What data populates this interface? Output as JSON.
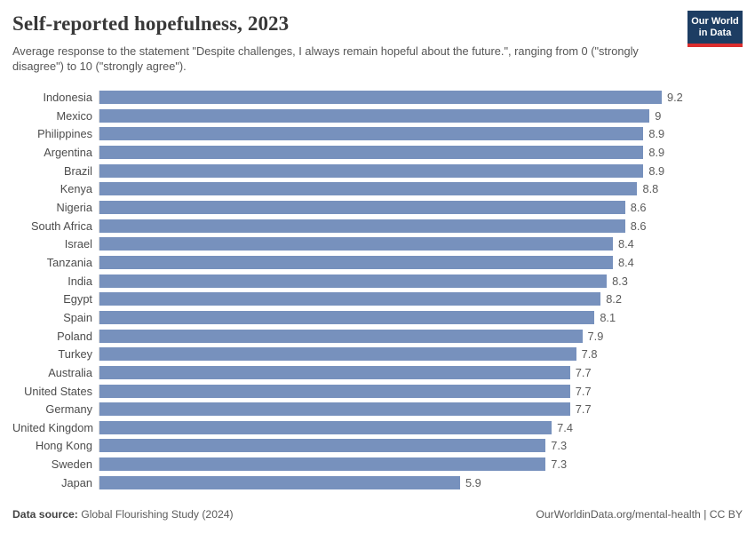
{
  "header": {
    "title": "Self-reported hopefulness, 2023",
    "subtitle": "Average response to the statement \"Despite challenges, I always remain hopeful about the future.\", ranging from 0 (\"strongly disagree\") to 10 (\"strongly agree\").",
    "logo": {
      "line1": "Our World",
      "line2": "in Data"
    }
  },
  "chart_data": {
    "type": "bar",
    "orientation": "horizontal",
    "title": "Self-reported hopefulness, 2023",
    "xlabel": "",
    "ylabel": "",
    "xlim": [
      0,
      9.2
    ],
    "grid": false,
    "legend": false,
    "bar_color": "#7791bd",
    "categories": [
      "Indonesia",
      "Mexico",
      "Philippines",
      "Argentina",
      "Brazil",
      "Kenya",
      "Nigeria",
      "South Africa",
      "Israel",
      "Tanzania",
      "India",
      "Egypt",
      "Spain",
      "Poland",
      "Turkey",
      "Australia",
      "United States",
      "Germany",
      "United Kingdom",
      "Hong Kong",
      "Sweden",
      "Japan"
    ],
    "values": [
      9.2,
      9,
      8.9,
      8.9,
      8.9,
      8.8,
      8.6,
      8.6,
      8.4,
      8.4,
      8.3,
      8.2,
      8.1,
      7.9,
      7.8,
      7.7,
      7.7,
      7.7,
      7.4,
      7.3,
      7.3,
      5.9
    ],
    "value_labels": [
      "9.2",
      "9",
      "8.9",
      "8.9",
      "8.9",
      "8.8",
      "8.6",
      "8.6",
      "8.4",
      "8.4",
      "8.3",
      "8.2",
      "8.1",
      "7.9",
      "7.8",
      "7.7",
      "7.7",
      "7.7",
      "7.4",
      "7.3",
      "7.3",
      "5.9"
    ]
  },
  "footer": {
    "source_label": "Data source:",
    "source_value": " Global Flourishing Study (2024)",
    "link": "OurWorldinData.org/mental-health | CC BY"
  },
  "colors": {
    "bar": "#7791bd",
    "axis_line": "#dedede",
    "title_text": "#383838",
    "subtitle_text": "#555555",
    "label_text": "#4c4c4c",
    "value_text": "#5b5b5b",
    "logo_background": "#1d3d63",
    "logo_accent": "#dc2e2e"
  }
}
